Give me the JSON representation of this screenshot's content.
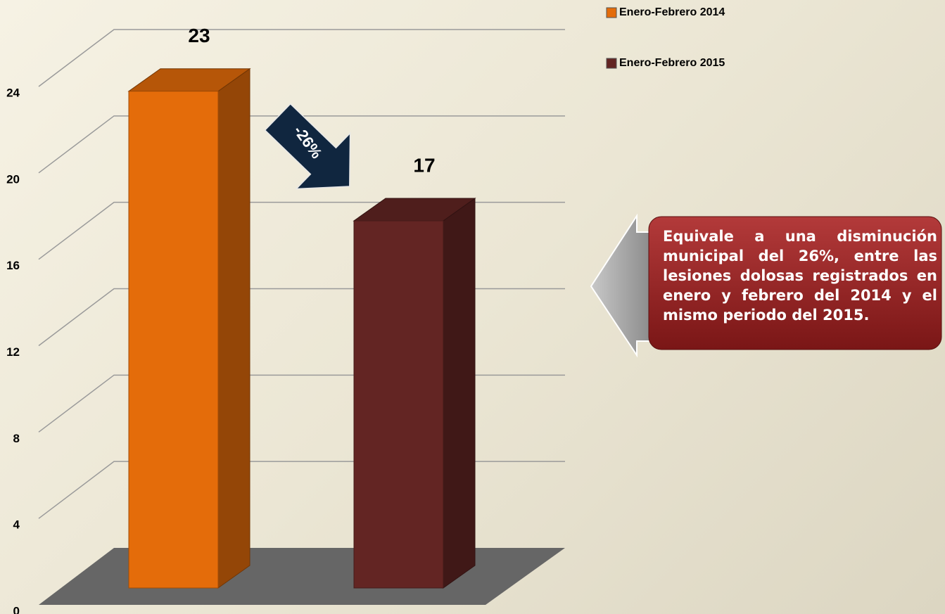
{
  "chart_data": {
    "type": "bar3d",
    "categories": [
      null
    ],
    "series": [
      {
        "name": "Enero-Febrero 2014",
        "color": "#e46c0a",
        "values": [
          23
        ]
      },
      {
        "name": "Enero-Febrero 2015",
        "color": "#632523",
        "values": [
          17
        ]
      }
    ],
    "ylim": [
      0,
      24
    ],
    "yticks": [
      0,
      4,
      8,
      12,
      16,
      20,
      24
    ],
    "grid": true,
    "legend": "top-right",
    "annotations": [
      "-26%",
      "Equivale a una disminución municipal del 26%, entre las lesiones dolosas registrados en enero y febrero del 2014 y el mismo periodo del 2015."
    ]
  }
}
